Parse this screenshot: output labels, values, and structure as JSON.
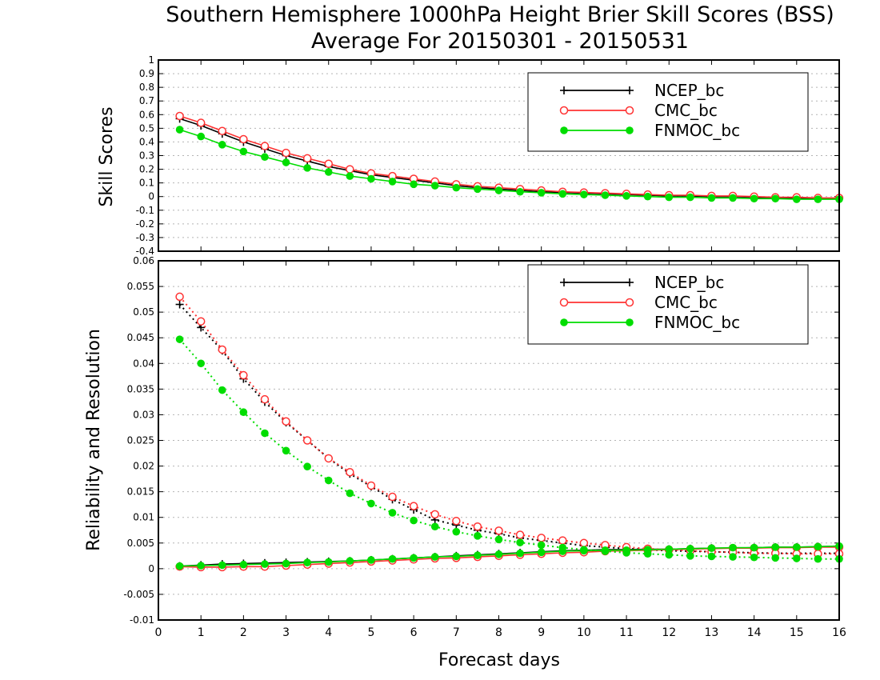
{
  "title": "Southern Hemisphere 1000hPa Height Brier Skill Scores (BSS)",
  "subtitle": "Average For 20150301 - 20150531",
  "chart_data": [
    {
      "type": "line",
      "ylabel": "Skill Scores",
      "xlim": [
        0,
        16
      ],
      "ylim": [
        -0.4,
        1
      ],
      "yticks": [
        "1",
        "0.9",
        "0.8",
        "0.7",
        "0.6",
        "0.5",
        "0.4",
        "0.3",
        "0.2",
        "0.1",
        "0",
        "-0.1",
        "-0.2",
        "-0.3",
        "-0.4"
      ],
      "grid": true,
      "legend_position": "top-right",
      "x": [
        0.5,
        1,
        1.5,
        2,
        2.5,
        3,
        3.5,
        4,
        4.5,
        5,
        5.5,
        6,
        6.5,
        7,
        7.5,
        8,
        8.5,
        9,
        9.5,
        10,
        10.5,
        11,
        11.5,
        12,
        12.5,
        13,
        13.5,
        14,
        14.5,
        15,
        15.5,
        16
      ],
      "series": [
        {
          "name": "NCEP_bc",
          "color": "#000000",
          "marker": "plus",
          "values": [
            0.57,
            0.52,
            0.46,
            0.4,
            0.35,
            0.3,
            0.26,
            0.22,
            0.19,
            0.16,
            0.14,
            0.12,
            0.1,
            0.08,
            0.065,
            0.055,
            0.045,
            0.035,
            0.03,
            0.025,
            0.02,
            0.015,
            0.01,
            0.005,
            0.005,
            0.0,
            0.0,
            -0.005,
            -0.01,
            -0.01,
            -0.015,
            -0.015
          ]
        },
        {
          "name": "CMC_bc",
          "color": "#ff3333",
          "marker": "open-circle",
          "values": [
            0.59,
            0.54,
            0.48,
            0.42,
            0.37,
            0.32,
            0.28,
            0.24,
            0.2,
            0.17,
            0.15,
            0.13,
            0.11,
            0.09,
            0.075,
            0.065,
            0.055,
            0.045,
            0.035,
            0.03,
            0.025,
            0.02,
            0.015,
            0.01,
            0.01,
            0.005,
            0.005,
            0.0,
            -0.005,
            -0.005,
            -0.01,
            -0.01
          ]
        },
        {
          "name": "FNMOC_bc",
          "color": "#00dd00",
          "marker": "filled-circle",
          "values": [
            0.49,
            0.44,
            0.38,
            0.33,
            0.29,
            0.25,
            0.21,
            0.18,
            0.15,
            0.13,
            0.11,
            0.09,
            0.08,
            0.065,
            0.055,
            0.045,
            0.035,
            0.028,
            0.02,
            0.015,
            0.01,
            0.005,
            0.0,
            -0.005,
            -0.005,
            -0.01,
            -0.01,
            -0.015,
            -0.015,
            -0.02,
            -0.02,
            -0.02
          ]
        }
      ]
    },
    {
      "type": "line",
      "ylabel": "Reliability and Resolution",
      "xlabel": "Forecast days",
      "xlim": [
        0,
        16
      ],
      "ylim": [
        -0.01,
        0.06
      ],
      "xticks": [
        "0",
        "1",
        "2",
        "3",
        "4",
        "5",
        "6",
        "7",
        "8",
        "9",
        "10",
        "11",
        "12",
        "13",
        "14",
        "15",
        "16"
      ],
      "yticks": [
        "0.06",
        "0.055",
        "0.05",
        "0.045",
        "0.04",
        "0.035",
        "0.03",
        "0.025",
        "0.02",
        "0.015",
        "0.01",
        "0.005",
        "0",
        "-0.005",
        "-0.01"
      ],
      "grid": true,
      "legend_position": "top-right",
      "x": [
        0.5,
        1,
        1.5,
        2,
        2.5,
        3,
        3.5,
        4,
        4.5,
        5,
        5.5,
        6,
        6.5,
        7,
        7.5,
        8,
        8.5,
        9,
        9.5,
        10,
        10.5,
        11,
        11.5,
        12,
        12.5,
        13,
        13.5,
        14,
        14.5,
        15,
        15.5,
        16
      ],
      "series": [
        {
          "name": "NCEP_bc",
          "color": "#000000",
          "marker": "plus",
          "line": "solid",
          "values": [
            0.0005,
            0.0007,
            0.0009,
            0.001,
            0.0011,
            0.0012,
            0.0013,
            0.0014,
            0.0015,
            0.0017,
            0.0019,
            0.0021,
            0.0023,
            0.0025,
            0.0027,
            0.0029,
            0.0031,
            0.0033,
            0.0035,
            0.0036,
            0.0037,
            0.0037,
            0.0038,
            0.0038,
            0.0039,
            0.004,
            0.004,
            0.0041,
            0.0042,
            0.0042,
            0.0043,
            0.0044
          ]
        },
        {
          "name": "NCEP_bc",
          "color": "#000000",
          "marker": "plus",
          "line": "dotted",
          "values": [
            0.0515,
            0.047,
            0.0425,
            0.037,
            0.0325,
            0.0285,
            0.025,
            0.0215,
            0.0185,
            0.016,
            0.0135,
            0.0115,
            0.0095,
            0.0085,
            0.0075,
            0.0068,
            0.006,
            0.0055,
            0.005,
            0.0045,
            0.0042,
            0.0039,
            0.0037,
            0.0035,
            0.0034,
            0.0033,
            0.0032,
            0.0031,
            0.003,
            0.003,
            0.003,
            0.003
          ]
        },
        {
          "name": "CMC_bc",
          "color": "#ff3333",
          "marker": "open-circle",
          "line": "solid",
          "values": [
            0.0004,
            0.0003,
            0.0003,
            0.0004,
            0.0004,
            0.0006,
            0.0008,
            0.001,
            0.0012,
            0.0014,
            0.0016,
            0.0018,
            0.002,
            0.0021,
            0.0023,
            0.0025,
            0.0027,
            0.0029,
            0.0031,
            0.0032,
            0.0034,
            0.0035,
            0.0036,
            0.0037,
            0.0038,
            0.0039,
            0.004,
            0.004,
            0.0041,
            0.0041,
            0.0042,
            0.0042
          ]
        },
        {
          "name": "CMC_bc",
          "color": "#ff3333",
          "marker": "open-circle",
          "line": "dotted",
          "values": [
            0.053,
            0.0482,
            0.0427,
            0.0377,
            0.033,
            0.0287,
            0.025,
            0.0215,
            0.0188,
            0.0162,
            0.014,
            0.0122,
            0.0106,
            0.0093,
            0.0082,
            0.0074,
            0.0066,
            0.006,
            0.0055,
            0.005,
            0.0046,
            0.0042,
            0.0039,
            0.0037,
            0.0035,
            0.0033,
            0.0032,
            0.003,
            0.003,
            0.0029,
            0.0029,
            0.0029
          ]
        },
        {
          "name": "FNMOC_bc",
          "color": "#00dd00",
          "marker": "filled-circle",
          "line": "solid",
          "values": [
            0.0005,
            0.0006,
            0.0007,
            0.0008,
            0.0009,
            0.001,
            0.0012,
            0.0013,
            0.0015,
            0.0017,
            0.0019,
            0.0021,
            0.0023,
            0.0024,
            0.0026,
            0.0028,
            0.003,
            0.0032,
            0.0034,
            0.0035,
            0.0036,
            0.0036,
            0.0037,
            0.0038,
            0.0039,
            0.004,
            0.0041,
            0.0041,
            0.0042,
            0.0042,
            0.0043,
            0.0044
          ]
        },
        {
          "name": "FNMOC_bc",
          "color": "#00dd00",
          "marker": "filled-circle",
          "line": "dotted",
          "values": [
            0.0447,
            0.04,
            0.0348,
            0.0305,
            0.0264,
            0.023,
            0.0199,
            0.0172,
            0.0147,
            0.0127,
            0.0109,
            0.0094,
            0.0082,
            0.0072,
            0.0064,
            0.0057,
            0.0051,
            0.0046,
            0.0041,
            0.0037,
            0.0034,
            0.0031,
            0.0029,
            0.0027,
            0.0025,
            0.0024,
            0.0023,
            0.0022,
            0.0021,
            0.002,
            0.0019,
            0.0019
          ]
        }
      ]
    }
  ]
}
